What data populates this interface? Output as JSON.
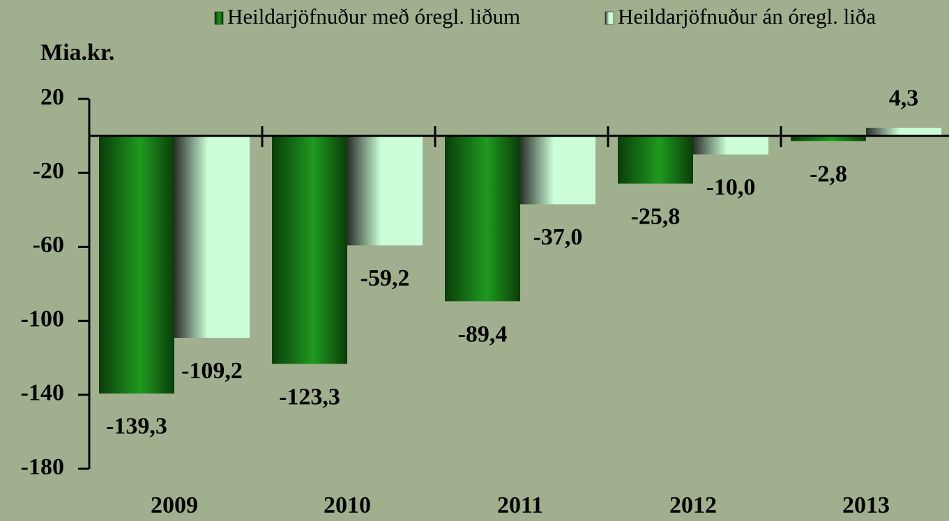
{
  "chart_data": {
    "type": "bar",
    "y_label": "Mia.kr.",
    "categories": [
      "2009",
      "2010",
      "2011",
      "2012",
      "2013"
    ],
    "series": [
      {
        "name": "Heildarjöfnuður með óregl. liðum",
        "color": "#1f9a1f",
        "values": [
          -139.3,
          -123.3,
          -89.4,
          -25.8,
          -2.8
        ],
        "value_labels": [
          "-139,3",
          "-123,3",
          "-89,4",
          "-25,8",
          "-2,8"
        ]
      },
      {
        "name": "Heildarjöfnuður án óregl. liða",
        "color": "#ccffd8",
        "values": [
          -109.2,
          -59.2,
          -37.0,
          -10.0,
          4.3
        ],
        "value_labels": [
          "-109,2",
          "-59,2",
          "-37,0",
          "-10,0",
          "4,3"
        ]
      }
    ],
    "ylim": [
      -180,
      20
    ],
    "yticks": [
      20,
      -20,
      -60,
      -100,
      -140,
      -180
    ]
  }
}
